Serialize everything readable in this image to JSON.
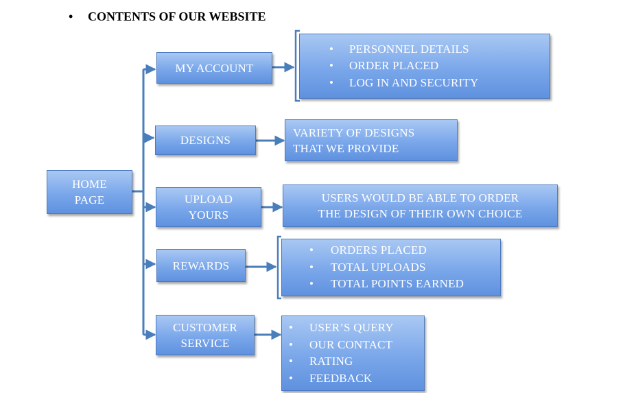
{
  "heading": {
    "bullet": "•",
    "text": "CONTENTS OF OUR WEBSITE"
  },
  "bullet_glyph": "•",
  "colors": {
    "box_top": "#a9c8f3",
    "box_bottom": "#5f91df",
    "connector": "#4a7ebb",
    "text": "#ffffff"
  },
  "home": {
    "line1": "HOME",
    "line2": "PAGE"
  },
  "sections": {
    "my_account": {
      "label": "MY ACCOUNT",
      "items": [
        "PERSONNEL DETAILS",
        "ORDER PLACED",
        "LOG IN AND SECURITY"
      ]
    },
    "designs": {
      "label": "DESIGNS",
      "detail": [
        "VARIETY OF DESIGNS",
        "THAT WE PROVIDE"
      ]
    },
    "upload_yours": {
      "label": [
        "UPLOAD",
        "YOURS"
      ],
      "detail": [
        "USERS WOULD BE ABLE TO ORDER",
        "THE DESIGN OF THEIR OWN CHOICE"
      ]
    },
    "rewards": {
      "label": "REWARDS",
      "items": [
        "ORDERS PLACED",
        "TOTAL UPLOADS",
        "TOTAL POINTS EARNED"
      ]
    },
    "customer_service": {
      "label": [
        "CUSTOMER",
        "SERVICE"
      ],
      "items": [
        "USER’S QUERY",
        "OUR CONTACT",
        "RATING",
        "FEEDBACK"
      ]
    }
  }
}
